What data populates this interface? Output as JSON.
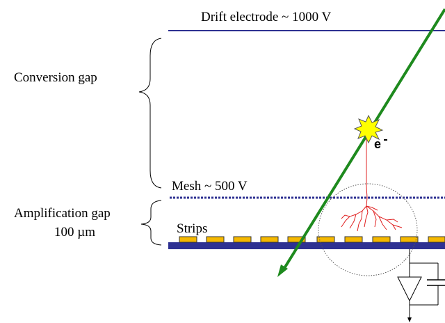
{
  "labels": {
    "drift_electrode": "Drift electrode ~ 1000 V",
    "conversion_gap": "Conversion gap",
    "mesh": "Mesh ~ 500 V",
    "amplification_gap_line1": "Amplification gap",
    "amplification_gap_line2": "100 µm",
    "strips": "Strips",
    "electron": "e"
  },
  "colors": {
    "electrode_line": "#2e3192",
    "mesh_dots": "#2e3192",
    "strip_fill": "#f5b800",
    "strip_border": "#333333",
    "substrate": "#2e3192",
    "track": "#1e8a1e",
    "avalanche": "#e02020",
    "spark": "#ffff00"
  },
  "strips_count": 10
}
